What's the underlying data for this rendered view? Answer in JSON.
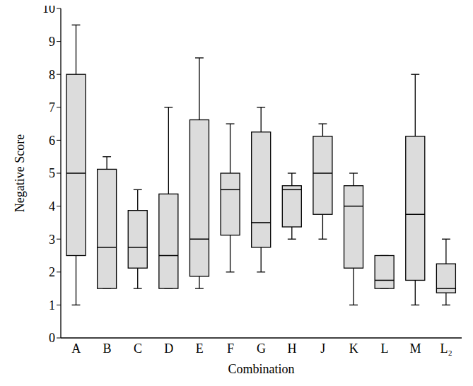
{
  "chart_data": {
    "type": "box",
    "x_label": "Combination",
    "y_label": "Negative Score",
    "categories": [
      "A",
      "B",
      "C",
      "D",
      "E",
      "F",
      "G",
      "H",
      "J",
      "K",
      "L",
      "M",
      "L₂"
    ],
    "min": [
      1,
      1.5,
      1.5,
      1.5,
      1.5,
      2,
      2,
      3,
      3,
      1,
      1.5,
      1,
      1
    ],
    "q1": [
      2.5,
      1.5,
      2.12,
      1.5,
      1.87,
      3.12,
      2.75,
      3.37,
      3.75,
      2.12,
      1.5,
      1.75,
      1.37
    ],
    "median": [
      5,
      2.75,
      2.75,
      2.5,
      3,
      4.5,
      3.5,
      4.5,
      5,
      4,
      1.75,
      3.75,
      1.5
    ],
    "q3": [
      8,
      5.12,
      3.87,
      4.37,
      6.62,
      5,
      6.25,
      4.62,
      6.12,
      4.62,
      2.5,
      6.12,
      2.25
    ],
    "max": [
      9.5,
      5.5,
      4.5,
      7,
      8.5,
      6.5,
      7,
      5,
      6.5,
      5,
      2.5,
      8,
      3
    ],
    "color": "#dcdcdc",
    "ylim": [
      0,
      10
    ],
    "yticks": [
      0,
      1,
      2,
      3,
      4,
      5,
      6,
      7,
      8,
      9,
      10
    ],
    "grid": false
  }
}
